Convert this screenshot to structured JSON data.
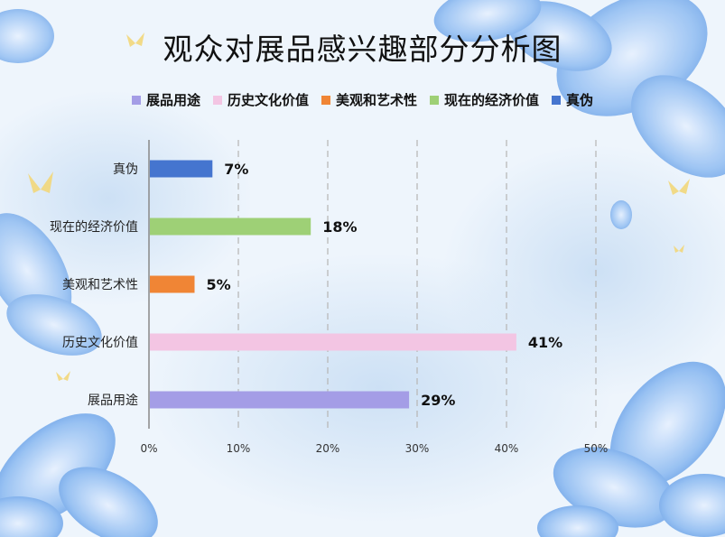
{
  "chart_data": {
    "type": "bar",
    "orientation": "horizontal",
    "title": "观众对展品感兴趣部分分析图",
    "categories": [
      "展品用途",
      "历史文化价值",
      "美观和艺术性",
      "现在的经济价值",
      "真伪"
    ],
    "values": [
      29,
      41,
      5,
      18,
      7
    ],
    "value_labels": [
      "29%",
      "41%",
      "5%",
      "18%",
      "7%"
    ],
    "colors": [
      "#a49de6",
      "#f3c5e3",
      "#f08535",
      "#9ed076",
      "#4575cf"
    ],
    "x_ticks": [
      "0%",
      "10%",
      "20%",
      "30%",
      "40%",
      "50%"
    ],
    "xlim": [
      0,
      50
    ],
    "grid": "vertical-dashed",
    "legend": {
      "placement": "top",
      "entries": [
        {
          "label": "展品用途",
          "color": "#a49de6"
        },
        {
          "label": "历史文化价值",
          "color": "#f3c5e3"
        },
        {
          "label": "美观和艺术性",
          "color": "#f08535"
        },
        {
          "label": "现在的经济价值",
          "color": "#9ed076"
        },
        {
          "label": "真伪",
          "color": "#4575cf"
        }
      ]
    }
  }
}
